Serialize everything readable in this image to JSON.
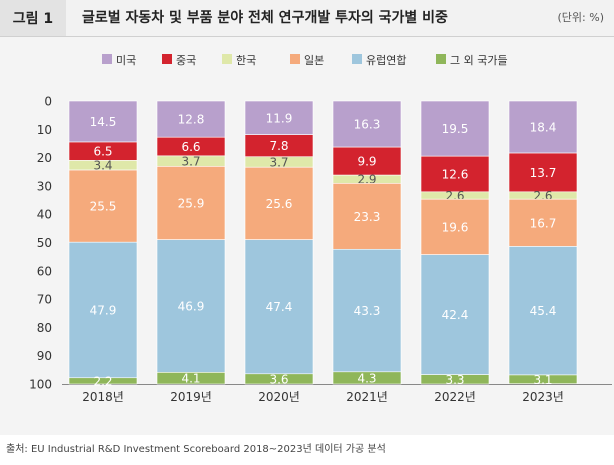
{
  "figure": {
    "label": "그림 1",
    "title": "글로벌 자동차 및 부품 분야 전체 연구개발 투자의 국가별 비중",
    "unit": "(단위: %)",
    "source": "출처: EU Industrial R&D Investment Scoreboard 2018~2023년 데이터 가공 분석"
  },
  "chart_data": {
    "type": "bar",
    "stacked": true,
    "categories": [
      "2018년",
      "2019년",
      "2020년",
      "2021년",
      "2022년",
      "2023년"
    ],
    "series": [
      {
        "name": "미국",
        "color": "#b8a0cc",
        "label_color": "#ffffff",
        "values": [
          14.5,
          12.8,
          11.9,
          16.3,
          19.5,
          18.4
        ]
      },
      {
        "name": "중국",
        "color": "#d3232e",
        "label_color": "#ffffff",
        "values": [
          6.5,
          6.6,
          7.8,
          9.9,
          12.6,
          13.7
        ]
      },
      {
        "name": "한국",
        "color": "#dfe8a9",
        "label_color": "#555555",
        "values": [
          3.4,
          3.7,
          3.7,
          2.9,
          2.6,
          2.6
        ]
      },
      {
        "name": "일본",
        "color": "#f5aa7c",
        "label_color": "#ffffff",
        "values": [
          25.5,
          25.9,
          25.6,
          23.3,
          19.6,
          16.7
        ]
      },
      {
        "name": "유럽연합",
        "color": "#9ec6dd",
        "label_color": "#ffffff",
        "values": [
          47.9,
          46.9,
          47.4,
          43.3,
          42.4,
          45.4
        ]
      },
      {
        "name": "그 외 국가들",
        "color": "#8fb65a",
        "label_color": "#ffffff",
        "values": [
          2.2,
          4.1,
          3.6,
          4.3,
          3.3,
          3.1
        ]
      }
    ],
    "yaxis": {
      "ticks": [
        0,
        10,
        20,
        30,
        40,
        50,
        60,
        70,
        80,
        90,
        100
      ],
      "inverted": true,
      "ylim": [
        0,
        100
      ]
    },
    "legend_position": "top",
    "grid": false
  }
}
